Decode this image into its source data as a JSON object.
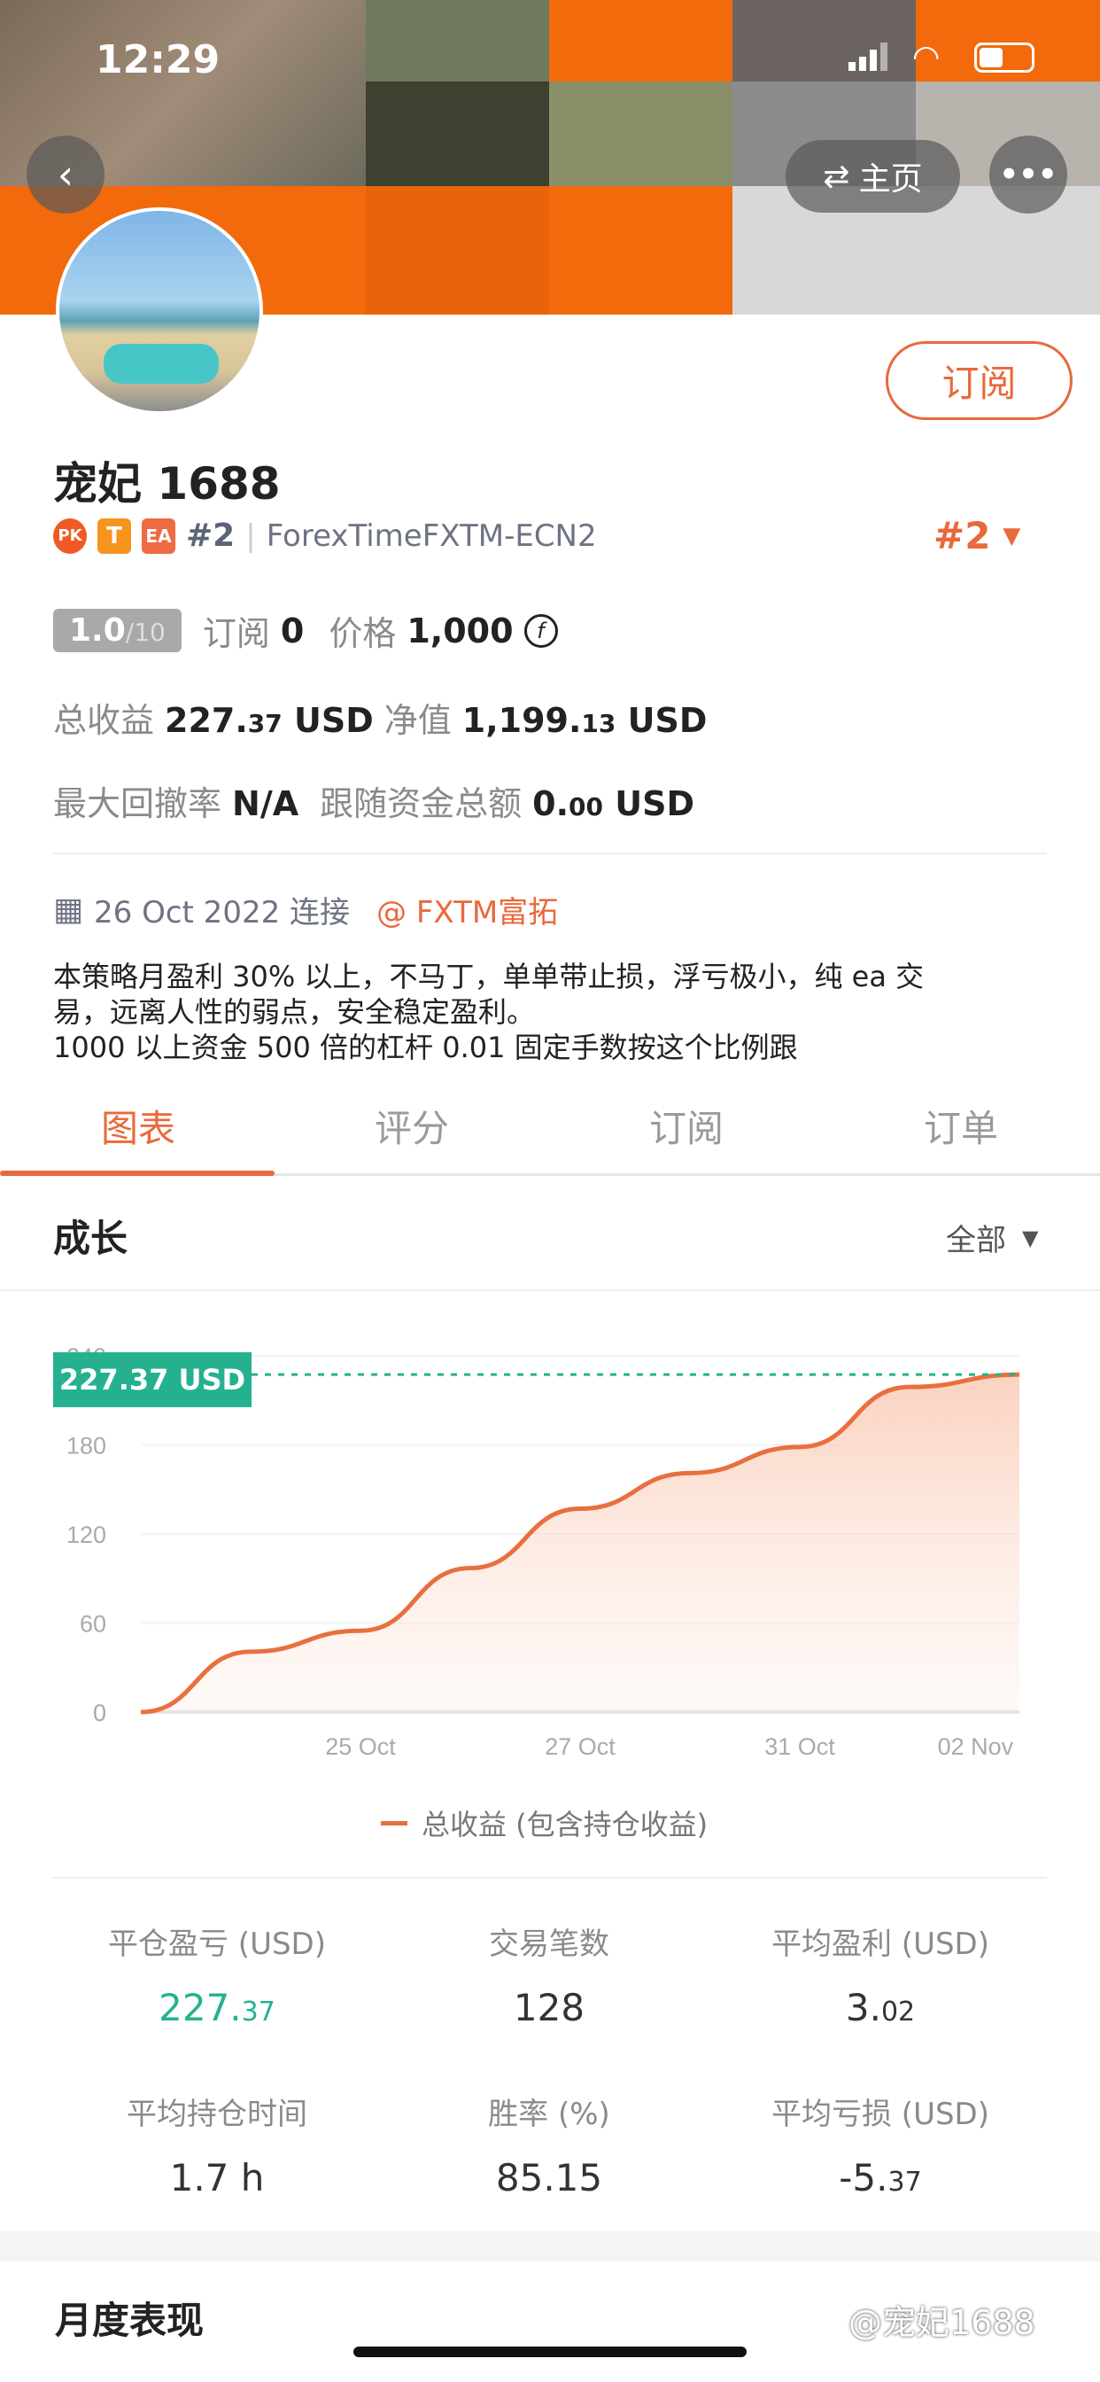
{
  "status_bar": {
    "time": "12:29"
  },
  "header": {
    "home_label": "主页",
    "back_icon": "chevron-left-icon",
    "more_icon": "ellipsis-icon",
    "switch_icon": "swap-arrows-icon",
    "subscribe_label": "订阅"
  },
  "profile": {
    "name": "宠妃 1688",
    "badges": [
      "PK",
      "T",
      "EA"
    ],
    "rank": "#2",
    "server": "ForexTimeFXTM-ECN2",
    "rank_right": "#2",
    "rating": "1.0",
    "rating_max": "/10",
    "subscribers_label": "订阅",
    "subscribers": "0",
    "price_label": "价格",
    "price": "1,000",
    "total_profit_label": "总收益",
    "total_profit_int": "227.",
    "total_profit_dec": "37",
    "total_profit_unit": "USD",
    "equity_label": "净值",
    "equity_int": "1,199.",
    "equity_dec": "13",
    "equity_unit": "USD",
    "max_drawdown_label": "最大回撤率",
    "max_drawdown": "N/A",
    "follow_funds_label": "跟随资金总额",
    "follow_funds_int": "0.",
    "follow_funds_dec": "00",
    "follow_funds_unit": "USD",
    "connected_date": "26 Oct 2022 连接",
    "broker": "@ FXTM富拓",
    "description": [
      "本策略月盈利 30% 以上，不马丁，单单带止损，浮亏极小，纯 ea 交",
      "易，远离人性的弱点，安全稳定盈利。",
      "1000 以上资金 500 倍的杠杆 0.01 固定手数按这个比例跟"
    ]
  },
  "tabs": [
    {
      "label": "图表",
      "active": true
    },
    {
      "label": "评分"
    },
    {
      "label": "订阅"
    },
    {
      "label": "订单"
    }
  ],
  "growth": {
    "title": "成长",
    "filter": "全部"
  },
  "chart_data": {
    "type": "area",
    "y_ticks": [
      0,
      60,
      120,
      180,
      240
    ],
    "ylim": [
      0,
      240
    ],
    "x_ticks": [
      {
        "label": "25 Oct",
        "at": 2
      },
      {
        "label": "27 Oct",
        "at": 4
      },
      {
        "label": "31 Oct",
        "at": 6
      },
      {
        "label": "02 Nov",
        "at": 7.6
      }
    ],
    "x": [
      0,
      1,
      2,
      3,
      4,
      5,
      6,
      7,
      8
    ],
    "values": [
      0,
      40.7,
      54.8,
      97,
      137,
      161,
      178.6,
      219,
      227.37
    ],
    "current_label": "227.37 USD",
    "legend": "总收益 (包含持仓收益)",
    "grid": true,
    "line_color": "#e8703f",
    "marker_color": "#25b18f"
  },
  "stats": [
    {
      "label": "平仓盈亏 (USD)",
      "int": "227.",
      "dec": "37",
      "color": "#25b18f"
    },
    {
      "label": "交易笔数",
      "int": "128",
      "dec": ""
    },
    {
      "label": "平均盈利 (USD)",
      "int": "3.",
      "dec": "02"
    },
    {
      "label": "平均持仓时间",
      "int": "1.7 h",
      "dec": ""
    },
    {
      "label": "胜率 (%)",
      "int": "85.15",
      "dec": ""
    },
    {
      "label": "平均亏损 (USD)",
      "int": "-5.",
      "dec": "37"
    }
  ],
  "monthly": {
    "title": "月度表现"
  },
  "watermark": "@宠妃1688"
}
